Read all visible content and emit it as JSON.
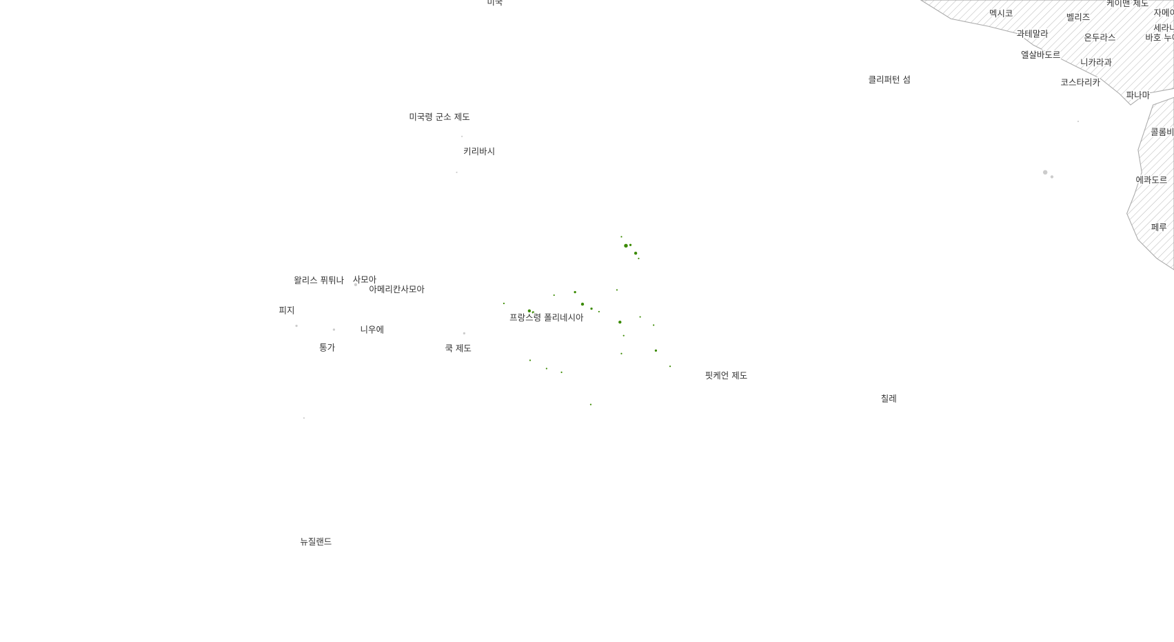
{
  "labels": [
    "미국",
    "멕시코",
    "케이맨 제도",
    "벨리즈",
    "자메이카",
    "과테말라",
    "온두라스",
    "세라니야 뱅크",
    "바호 누에보",
    "엘살바도르",
    "니카라과",
    "클리퍼턴 섬",
    "코스타리카",
    "파나마",
    "콜롬비아",
    "에콰도르",
    "페루",
    "미국령 군소 제도",
    "키리바시",
    "왈리스 퓌튀나",
    "사모아",
    "아메리칸사모아",
    "피지",
    "니우에",
    "프랑스령 폴리네시아",
    "통가",
    "쿡 제도",
    "핏케언 제도",
    "칠레",
    "뉴질랜드"
  ]
}
